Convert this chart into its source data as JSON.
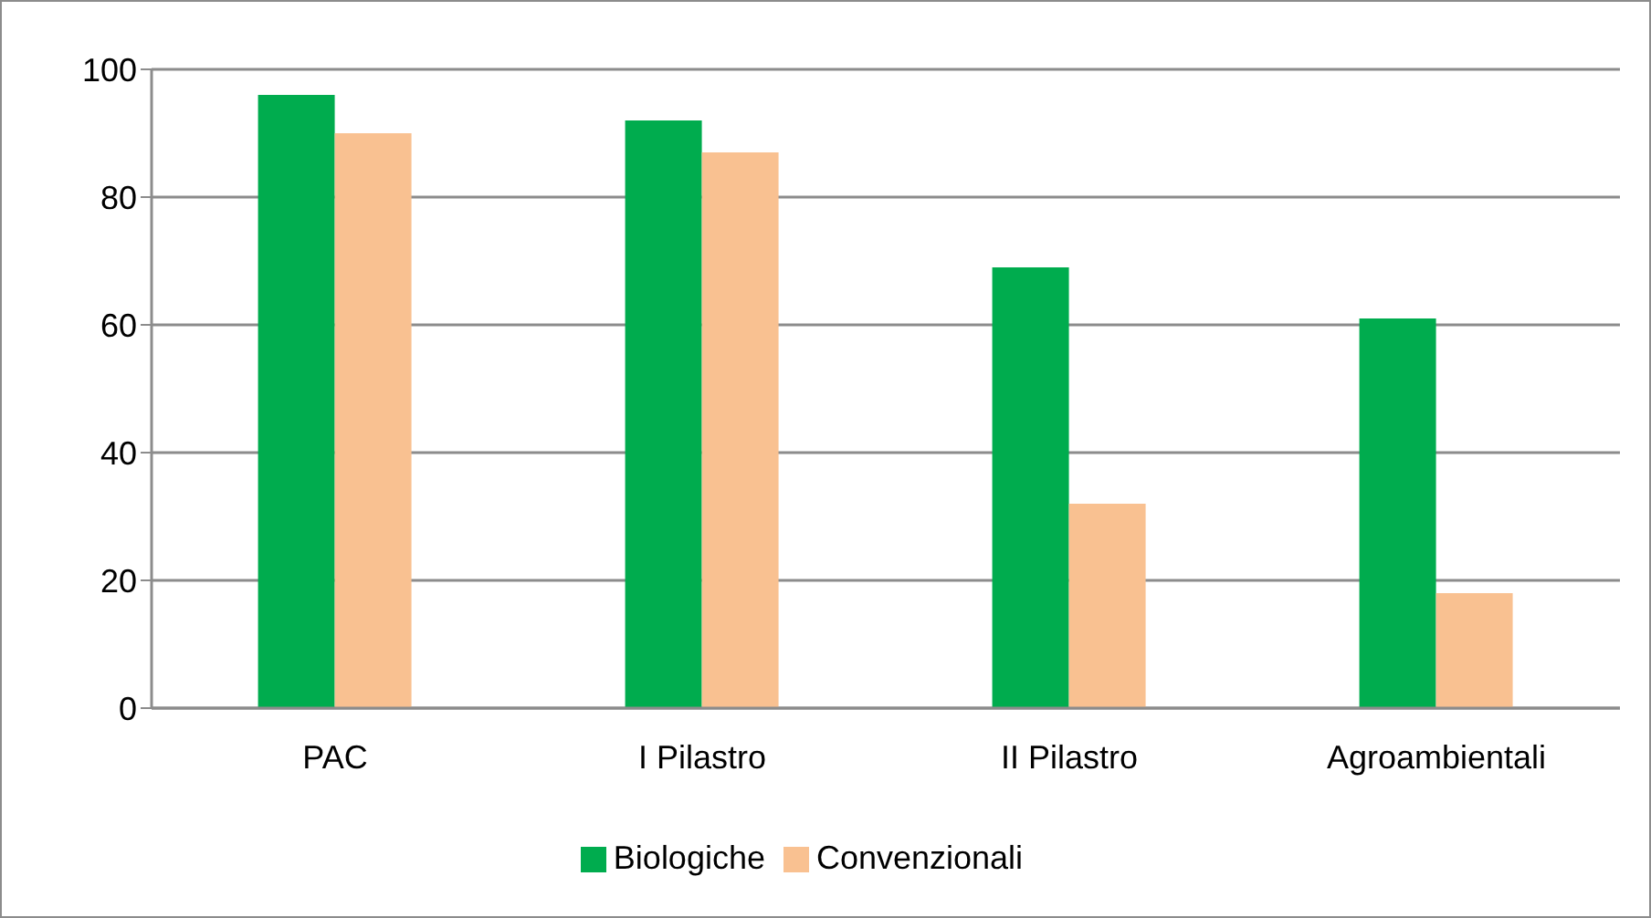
{
  "chart_data": {
    "type": "bar",
    "categories": [
      "PAC",
      "I Pilastro",
      "II Pilastro",
      "Agroambientali"
    ],
    "series": [
      {
        "name": "Biologiche",
        "color": "#00ac4e",
        "values": [
          96,
          92,
          69,
          61
        ]
      },
      {
        "name": "Convenzionali",
        "color": "#f9c191",
        "values": [
          90,
          87,
          32,
          18
        ]
      }
    ],
    "ylim": [
      0,
      100
    ],
    "yticks": [
      0,
      20,
      40,
      60,
      80,
      100
    ],
    "grid": "y",
    "legend": "bottom"
  }
}
